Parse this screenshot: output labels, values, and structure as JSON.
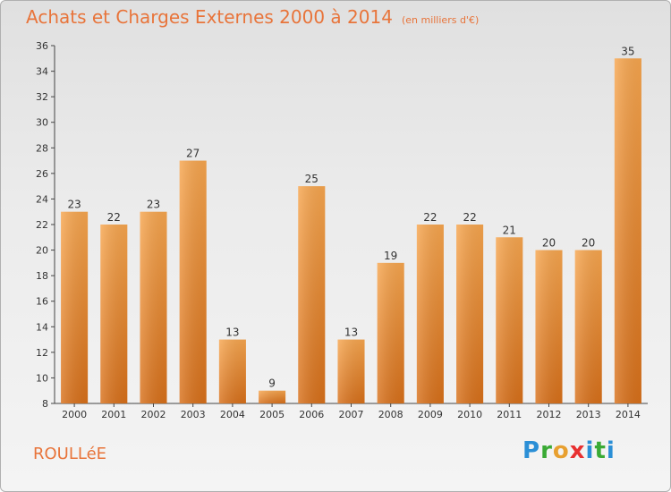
{
  "title": "Achats et Charges Externes 2000 à 2014",
  "subtitle": "(en milliers d'€)",
  "commune": "ROULLéE",
  "logo": {
    "l1": "P",
    "l2": "r",
    "l3": "o",
    "l4": "x",
    "l5": "i",
    "l6": "t",
    "l7": "i"
  },
  "colors": {
    "bar_top": "#f7a64f",
    "bar_bottom": "#d8701a",
    "accent": "#e8743a"
  },
  "chart_data": {
    "type": "bar",
    "categories": [
      "2000",
      "2001",
      "2002",
      "2003",
      "2004",
      "2005",
      "2006",
      "2007",
      "2008",
      "2009",
      "2010",
      "2011",
      "2012",
      "2013",
      "2014"
    ],
    "values": [
      23,
      22,
      23,
      27,
      13,
      9,
      25,
      13,
      19,
      22,
      22,
      21,
      20,
      20,
      35
    ],
    "ylim": [
      8,
      36
    ],
    "yticks": [
      8,
      10,
      12,
      14,
      16,
      18,
      20,
      22,
      24,
      26,
      28,
      30,
      32,
      34,
      36
    ],
    "grid": false,
    "xlabel": "",
    "ylabel": ""
  }
}
